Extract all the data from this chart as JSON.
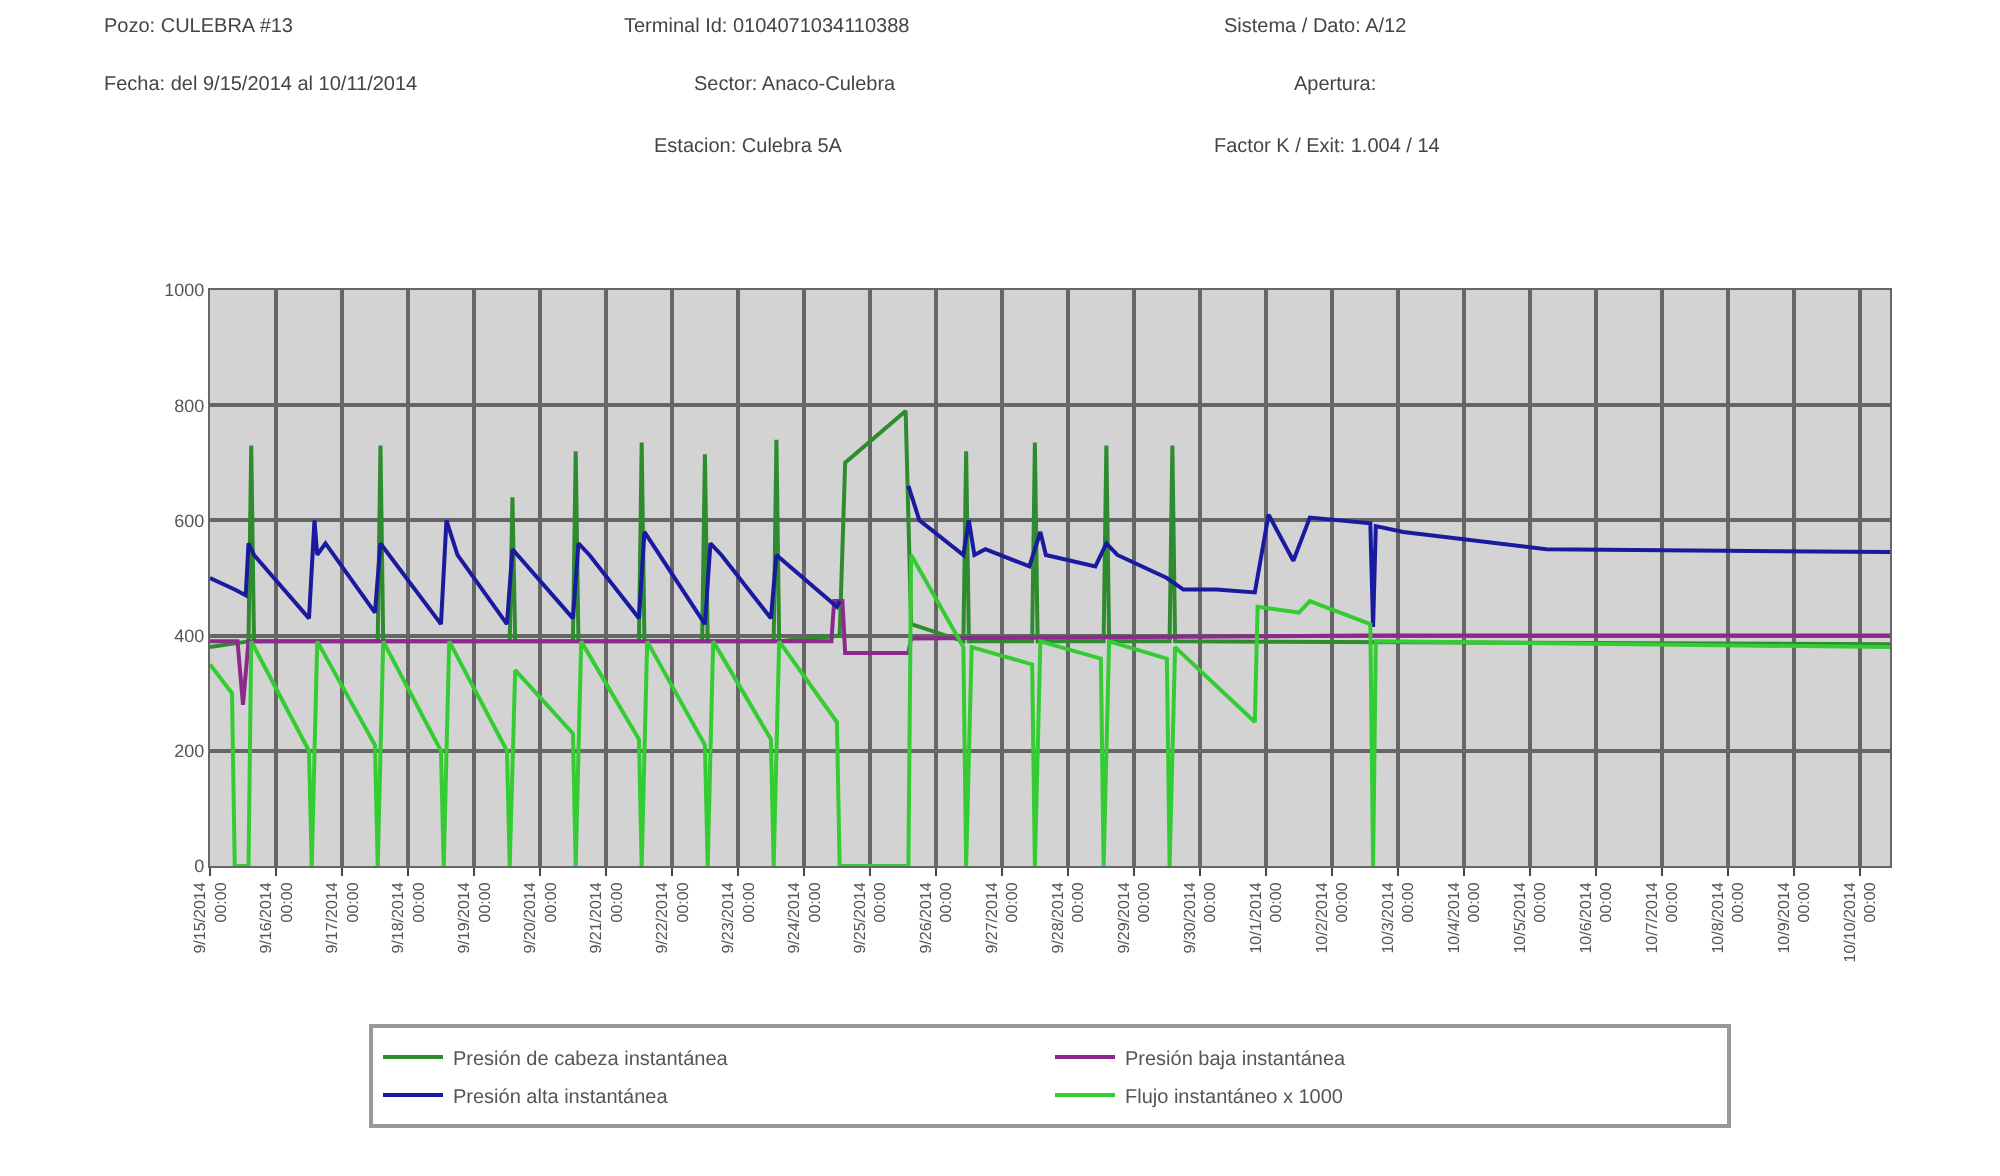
{
  "chart_data": {
    "type": "line",
    "annotations": [
      "Pozo: CULEBRA #13",
      "Terminal Id: 0104071034110388",
      "Sistema / Dato: A/12",
      "Fecha: del 9/15/2014 al 10/11/2014",
      "Sector: Anaco-Culebra",
      "Apertura:",
      "Estacion: Culebra 5A",
      "Factor K / Exit: 1.004 / 14"
    ],
    "xlim": [
      "2014-09-15",
      "2014-10-10T11:00"
    ],
    "xticks": [
      {
        "value": "2014-09-15",
        "label": "9/15/2014\n00:00"
      },
      {
        "value": "2014-09-16",
        "label": "9/16/2014\n00:00"
      },
      {
        "value": "2014-09-17",
        "label": "9/17/2014\n00:00"
      },
      {
        "value": "2014-09-18",
        "label": "9/18/2014\n00:00"
      },
      {
        "value": "2014-09-19",
        "label": "9/19/2014\n00:00"
      },
      {
        "value": "2014-09-20",
        "label": "9/20/2014\n00:00"
      },
      {
        "value": "2014-09-21",
        "label": "9/21/2014\n00:00"
      },
      {
        "value": "2014-09-22",
        "label": "9/22/2014\n00:00"
      },
      {
        "value": "2014-09-23",
        "label": "9/23/2014\n00:00"
      },
      {
        "value": "2014-09-24",
        "label": "9/24/2014\n00:00"
      },
      {
        "value": "2014-09-25",
        "label": "9/25/2014\n00:00"
      },
      {
        "value": "2014-09-26",
        "label": "9/26/2014\n00:00"
      },
      {
        "value": "2014-09-27",
        "label": "9/27/2014\n00:00"
      },
      {
        "value": "2014-09-28",
        "label": "9/28/2014\n00:00"
      },
      {
        "value": "2014-09-29",
        "label": "9/29/2014\n00:00"
      },
      {
        "value": "2014-09-30",
        "label": "9/30/2014\n00:00"
      },
      {
        "value": "2014-10-01",
        "label": "10/1/2014\n00:00"
      },
      {
        "value": "2014-10-02",
        "label": "10/2/2014\n00:00"
      },
      {
        "value": "2014-10-03",
        "label": "10/3/2014\n00:00"
      },
      {
        "value": "2014-10-04",
        "label": "10/4/2014\n00:00"
      },
      {
        "value": "2014-10-05",
        "label": "10/5/2014\n00:00"
      },
      {
        "value": "2014-10-06",
        "label": "10/6/2014\n00:00"
      },
      {
        "value": "2014-10-07",
        "label": "10/7/2014\n00:00"
      },
      {
        "value": "2014-10-08",
        "label": "10/8/2014\n00:00"
      },
      {
        "value": "2014-10-09",
        "label": "10/9/2014\n00:00"
      },
      {
        "value": "2014-10-10",
        "label": "10/10/2014\n00:00"
      }
    ],
    "ylim": [
      0,
      1000
    ],
    "yticks": [
      0,
      200,
      400,
      600,
      800,
      1000
    ],
    "grid": true,
    "legend": "bottom",
    "marker": "none",
    "line_style": "solid",
    "series": [
      {
        "name": "Presión de cabeza instantánea",
        "color": "#2e8b2e",
        "x": [
          "2014-09-15T00:00",
          "2014-09-15T14:00",
          "2014-09-15T15:00",
          "2014-09-15T16:00",
          "2014-09-17T13:00",
          "2014-09-17T14:00",
          "2014-09-17T15:00",
          "2014-09-19T13:00",
          "2014-09-19T14:00",
          "2014-09-19T15:00",
          "2014-09-20T12:00",
          "2014-09-20T13:00",
          "2014-09-20T14:00",
          "2014-09-21T12:00",
          "2014-09-21T13:00",
          "2014-09-21T14:00",
          "2014-09-22T11:00",
          "2014-09-22T12:00",
          "2014-09-22T13:00",
          "2014-09-23T13:00",
          "2014-09-23T14:00",
          "2014-09-23T15:00",
          "2014-09-24T13:00",
          "2014-09-24T15:00",
          "2014-09-25T13:00",
          "2014-09-25T15:00",
          "2014-09-26T10:00",
          "2014-09-26T11:00",
          "2014-09-26T12:00",
          "2014-09-27T11:00",
          "2014-09-27T12:00",
          "2014-09-27T13:00",
          "2014-09-28T13:00",
          "2014-09-28T14:00",
          "2014-09-28T15:00",
          "2014-09-29T13:00",
          "2014-09-29T14:00",
          "2014-09-29T15:00",
          "2014-10-10T11:00"
        ],
        "values": [
          380,
          390,
          730,
          390,
          390,
          730,
          390,
          390,
          640,
          390,
          390,
          720,
          390,
          390,
          735,
          390,
          390,
          715,
          390,
          390,
          740,
          390,
          400,
          700,
          790,
          420,
          390,
          720,
          390,
          390,
          735,
          390,
          390,
          730,
          390,
          390,
          730,
          390,
          385
        ]
      },
      {
        "name": "Presión baja instantánea",
        "color": "#8b2a8b",
        "x": [
          "2014-09-15T00:00",
          "2014-09-15T10:00",
          "2014-09-15T12:00",
          "2014-09-15T14:00",
          "2014-09-24T10:00",
          "2014-09-24T11:00",
          "2014-09-24T14:00",
          "2014-09-24T15:00",
          "2014-09-25T14:00",
          "2014-09-25T15:00",
          "2014-10-02T12:00",
          "2014-10-10T11:00"
        ],
        "values": [
          390,
          390,
          280,
          390,
          390,
          460,
          460,
          370,
          370,
          395,
          400,
          400
        ]
      },
      {
        "name": "Presión alta instantánea",
        "color": "#1a1aa0",
        "x": [
          "2014-09-15T00:00",
          "2014-09-15T09:00",
          "2014-09-15T13:00",
          "2014-09-15T14:00",
          "2014-09-15T16:00",
          "2014-09-16T12:00",
          "2014-09-16T14:00",
          "2014-09-16T15:00",
          "2014-09-16T18:00",
          "2014-09-17T12:00",
          "2014-09-17T14:00",
          "2014-09-18T12:00",
          "2014-09-18T14:00",
          "2014-09-18T18:00",
          "2014-09-19T12:00",
          "2014-09-19T14:00",
          "2014-09-20T12:00",
          "2014-09-20T14:00",
          "2014-09-20T18:00",
          "2014-09-21T12:00",
          "2014-09-21T14:00",
          "2014-09-22T12:00",
          "2014-09-22T14:00",
          "2014-09-22T18:00",
          "2014-09-23T12:00",
          "2014-09-23T14:00",
          "2014-09-24T12:00",
          "2014-09-24T13:00",
          "2014-09-24T14:00",
          "2014-09-25T14:00",
          "2014-09-25T18:00",
          "2014-09-26T10:00",
          "2014-09-26T12:00",
          "2014-09-26T14:00",
          "2014-09-26T18:00",
          "2014-09-27T10:00",
          "2014-09-27T14:00",
          "2014-09-27T16:00",
          "2014-09-28T10:00",
          "2014-09-28T14:00",
          "2014-09-28T18:00",
          "2014-09-29T12:00",
          "2014-09-29T18:00",
          "2014-09-30T06:00",
          "2014-09-30T20:00",
          "2014-10-01T01:00",
          "2014-10-01T10:00",
          "2014-10-01T16:00",
          "2014-10-02T14:00",
          "2014-10-02T15:00",
          "2014-10-02T16:00",
          "2014-10-03T02:00",
          "2014-10-05T06:00",
          "2014-10-10T11:00"
        ],
        "values": [
          500,
          480,
          470,
          560,
          540,
          430,
          600,
          540,
          560,
          440,
          560,
          420,
          600,
          540,
          420,
          550,
          430,
          560,
          540,
          430,
          580,
          420,
          560,
          540,
          430,
          540,
          450,
          460,
          null,
          660,
          600,
          540,
          600,
          540,
          550,
          520,
          580,
          540,
          520,
          560,
          540,
          500,
          480,
          480,
          475,
          610,
          530,
          605,
          595,
          415,
          590,
          580,
          550,
          545
        ]
      },
      {
        "name": "Flujo instantáneo x 1000",
        "color": "#33cc33",
        "x": [
          "2014-09-15T00:00",
          "2014-09-15T08:00",
          "2014-09-15T09:00",
          "2014-09-15T14:00",
          "2014-09-15T15:00",
          "2014-09-16T12:00",
          "2014-09-16T13:00",
          "2014-09-16T15:00",
          "2014-09-17T12:00",
          "2014-09-17T13:00",
          "2014-09-17T15:00",
          "2014-09-18T12:00",
          "2014-09-18T13:00",
          "2014-09-18T15:00",
          "2014-09-19T12:00",
          "2014-09-19T13:00",
          "2014-09-19T15:00",
          "2014-09-20T12:00",
          "2014-09-20T13:00",
          "2014-09-20T15:00",
          "2014-09-21T12:00",
          "2014-09-21T13:00",
          "2014-09-21T15:00",
          "2014-09-22T12:00",
          "2014-09-22T13:00",
          "2014-09-22T15:00",
          "2014-09-23T12:00",
          "2014-09-23T13:00",
          "2014-09-23T15:00",
          "2014-09-24T12:00",
          "2014-09-24T13:00",
          "2014-09-25T14:00",
          "2014-09-25T15:00",
          "2014-09-26T10:00",
          "2014-09-26T11:00",
          "2014-09-26T13:00",
          "2014-09-27T11:00",
          "2014-09-27T12:00",
          "2014-09-27T14:00",
          "2014-09-28T12:00",
          "2014-09-28T13:00",
          "2014-09-28T15:00",
          "2014-09-29T12:00",
          "2014-09-29T13:00",
          "2014-09-29T15:00",
          "2014-09-30T20:00",
          "2014-09-30T21:00",
          "2014-10-01T12:00",
          "2014-10-01T16:00",
          "2014-10-02T14:00",
          "2014-10-02T15:00",
          "2014-10-02T16:00",
          "2014-10-10T11:00"
        ],
        "values": [
          350,
          300,
          0,
          0,
          390,
          200,
          0,
          390,
          210,
          0,
          390,
          200,
          0,
          390,
          200,
          0,
          340,
          230,
          0,
          390,
          220,
          0,
          390,
          210,
          0,
          390,
          220,
          0,
          390,
          250,
          0,
          0,
          540,
          380,
          0,
          380,
          350,
          0,
          390,
          360,
          0,
          390,
          360,
          0,
          380,
          250,
          450,
          440,
          460,
          420,
          0,
          390,
          380
        ]
      }
    ]
  }
}
